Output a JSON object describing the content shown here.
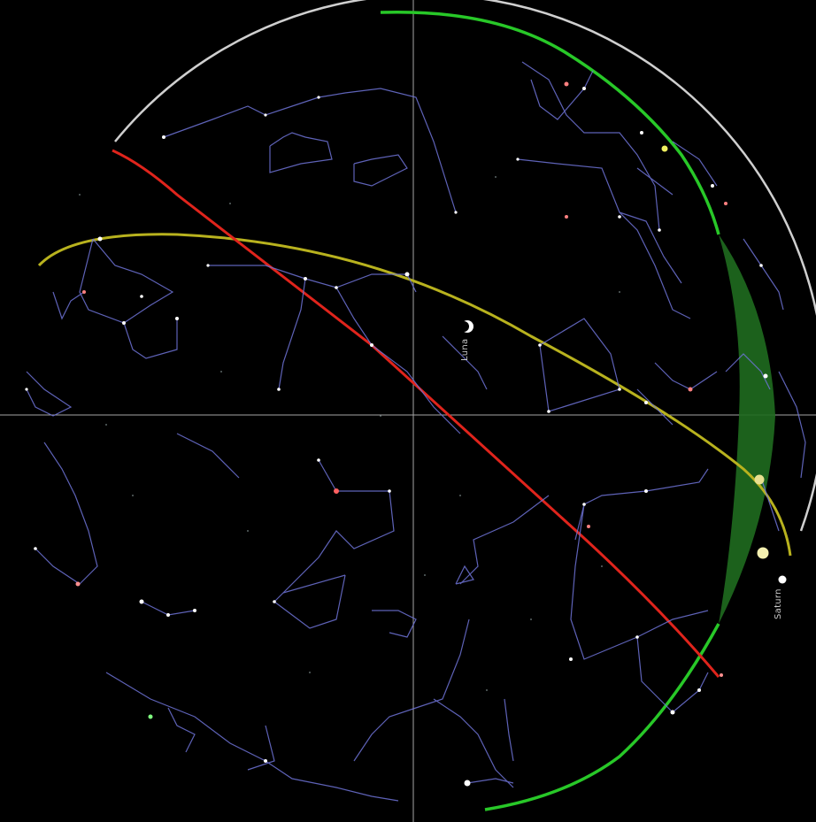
{
  "view": {
    "background": "#000000",
    "horizon_color": "#cfcfcf",
    "crosshair_color": "#d8d8d8",
    "constellation_line_color": "#6f74d8",
    "constellation_label_color": "#2fa58a",
    "star_label_color": "#8fa6b8"
  },
  "curves": {
    "ecliptic": {
      "color": "#b8b21e"
    },
    "meridian": {
      "color": "#e0241c"
    },
    "green_arc": {
      "color": "#28c828"
    },
    "green_band": {
      "color": "#1f6b1f"
    }
  },
  "bodies": {
    "moon": {
      "label": "Luna",
      "icon": "moon-icon",
      "color": "#ffffff"
    },
    "venus": {
      "label": "",
      "icon": "planet-icon",
      "color": "#e8e090"
    },
    "sun": {
      "label": "",
      "icon": "sun-icon",
      "color": "#f4f0b0"
    },
    "saturn": {
      "label": "Saturn",
      "icon": "planet-icon",
      "color": "#ffffff"
    }
  }
}
